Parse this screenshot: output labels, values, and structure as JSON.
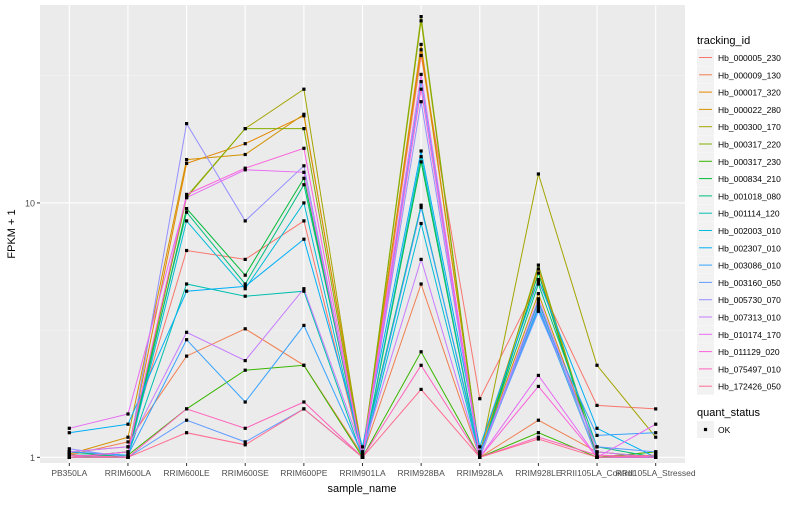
{
  "chart_data": {
    "type": "line",
    "xlabel": "sample_name",
    "ylabel": "FPKM + 1",
    "y_scale": "log10",
    "ylim": [
      0.95,
      60
    ],
    "y_ticks": [
      {
        "value": 1,
        "label": "1"
      },
      {
        "value": 10,
        "label": "10"
      }
    ],
    "grid": true,
    "legend_position": "right",
    "categories": [
      "PB350LA",
      "RRIM600LA",
      "RRIM600LE",
      "RRIM600SE",
      "RRIM600PE",
      "RRIM901LA",
      "RRIM928BA",
      "RRIM928LA",
      "RRIM928LE",
      "RRII105LA_Control",
      "RRII105LA_Stressed"
    ],
    "series": [
      {
        "name": "Hb_000005_230",
        "color": "#F8766D",
        "values": [
          1.05,
          1.1,
          6.5,
          6.0,
          8.5,
          1.0,
          38,
          1.7,
          4.9,
          1.6,
          1.55
        ]
      },
      {
        "name": "Hb_000009_130",
        "color": "#F07E4F",
        "values": [
          1.02,
          1.15,
          2.5,
          3.2,
          2.3,
          1.02,
          4.8,
          1.0,
          1.4,
          1.05,
          1.0
        ]
      },
      {
        "name": "Hb_000017_320",
        "color": "#E58700",
        "values": [
          1.0,
          1.05,
          14.3,
          17.1,
          22.0,
          1.05,
          40,
          1.05,
          5.5,
          1.0,
          1.05
        ]
      },
      {
        "name": "Hb_000022_280",
        "color": "#D39200",
        "values": [
          1.03,
          1.2,
          14.8,
          15.5,
          22.3,
          1.02,
          42,
          1.02,
          4.4,
          1.05,
          1.0
        ]
      },
      {
        "name": "Hb_000300_170",
        "color": "#A3A500",
        "values": [
          1.0,
          1.0,
          10.5,
          19.6,
          28.0,
          1.0,
          52,
          1.0,
          13.0,
          2.3,
          1.2
        ]
      },
      {
        "name": "Hb_000317_220",
        "color": "#85AD00",
        "values": [
          1.02,
          1.0,
          10.6,
          19.6,
          19.6,
          1.0,
          54,
          1.0,
          5.7,
          1.0,
          1.0
        ]
      },
      {
        "name": "Hb_000317_230",
        "color": "#39B600",
        "values": [
          1.0,
          1.02,
          1.55,
          2.2,
          2.3,
          1.0,
          2.6,
          1.0,
          1.25,
          1.0,
          1.05
        ]
      },
      {
        "name": "Hb_000834_210",
        "color": "#00BA38",
        "values": [
          1.05,
          1.0,
          9.5,
          5.2,
          12.5,
          1.0,
          14.5,
          1.0,
          5.3,
          1.0,
          1.0
        ]
      },
      {
        "name": "Hb_001018_080",
        "color": "#00BF7D",
        "values": [
          1.0,
          1.05,
          9.2,
          4.8,
          11.8,
          1.05,
          9.8,
          1.02,
          4.8,
          1.1,
          1.0
        ]
      },
      {
        "name": "Hb_001114_120",
        "color": "#00C0AF",
        "values": [
          1.02,
          1.02,
          4.8,
          4.3,
          4.5,
          1.0,
          15.2,
          1.0,
          4.1,
          1.0,
          1.02
        ]
      },
      {
        "name": "Hb_002003_010",
        "color": "#00BCD8",
        "values": [
          1.0,
          1.0,
          8.5,
          4.6,
          10.0,
          1.0,
          8.3,
          1.0,
          3.9,
          1.0,
          1.0
        ]
      },
      {
        "name": "Hb_002307_010",
        "color": "#00B0F6",
        "values": [
          1.25,
          1.35,
          4.5,
          4.7,
          7.2,
          1.1,
          16.0,
          1.1,
          5.0,
          1.3,
          1.0
        ]
      },
      {
        "name": "Hb_003086_010",
        "color": "#35A2FF",
        "values": [
          1.05,
          1.02,
          2.9,
          1.65,
          3.3,
          1.02,
          9.6,
          1.05,
          3.8,
          1.22,
          1.25
        ]
      },
      {
        "name": "Hb_003160_050",
        "color": "#619CFF",
        "values": [
          1.0,
          1.0,
          1.4,
          1.15,
          1.55,
          1.0,
          30.0,
          1.02,
          3.75,
          1.1,
          1.05
        ]
      },
      {
        "name": "Hb_005730_070",
        "color": "#9590FF",
        "values": [
          1.08,
          1.0,
          20.5,
          8.5,
          14.0,
          1.0,
          25.0,
          1.0,
          4.0,
          1.0,
          1.0
        ]
      },
      {
        "name": "Hb_007313_010",
        "color": "#C77CFF",
        "values": [
          1.05,
          1.1,
          3.1,
          2.4,
          4.6,
          1.05,
          6.0,
          1.0,
          4.2,
          1.05,
          1.0
        ]
      },
      {
        "name": "Hb_010174_170",
        "color": "#E76BF3",
        "values": [
          1.3,
          1.48,
          10.5,
          13.5,
          13.2,
          1.02,
          32.0,
          1.0,
          2.1,
          1.0,
          1.35
        ]
      },
      {
        "name": "Hb_011129_020",
        "color": "#FA62DB",
        "values": [
          1.0,
          1.05,
          10.8,
          13.7,
          16.4,
          1.0,
          28.0,
          1.0,
          1.9,
          1.0,
          1.0
        ]
      },
      {
        "name": "Hb_075497_010",
        "color": "#FF62BC",
        "values": [
          1.02,
          1.0,
          1.55,
          1.3,
          1.65,
          1.0,
          2.3,
          1.0,
          1.2,
          1.02,
          1.0
        ]
      },
      {
        "name": "Hb_172426_050",
        "color": "#FF6C91",
        "values": [
          1.0,
          1.0,
          1.25,
          1.12,
          1.55,
          1.0,
          1.85,
          1.0,
          1.18,
          1.0,
          1.02
        ]
      }
    ],
    "legend": {
      "title": "tracking_id",
      "shape_title": "quant_status",
      "shape_entries": [
        "OK"
      ]
    }
  }
}
